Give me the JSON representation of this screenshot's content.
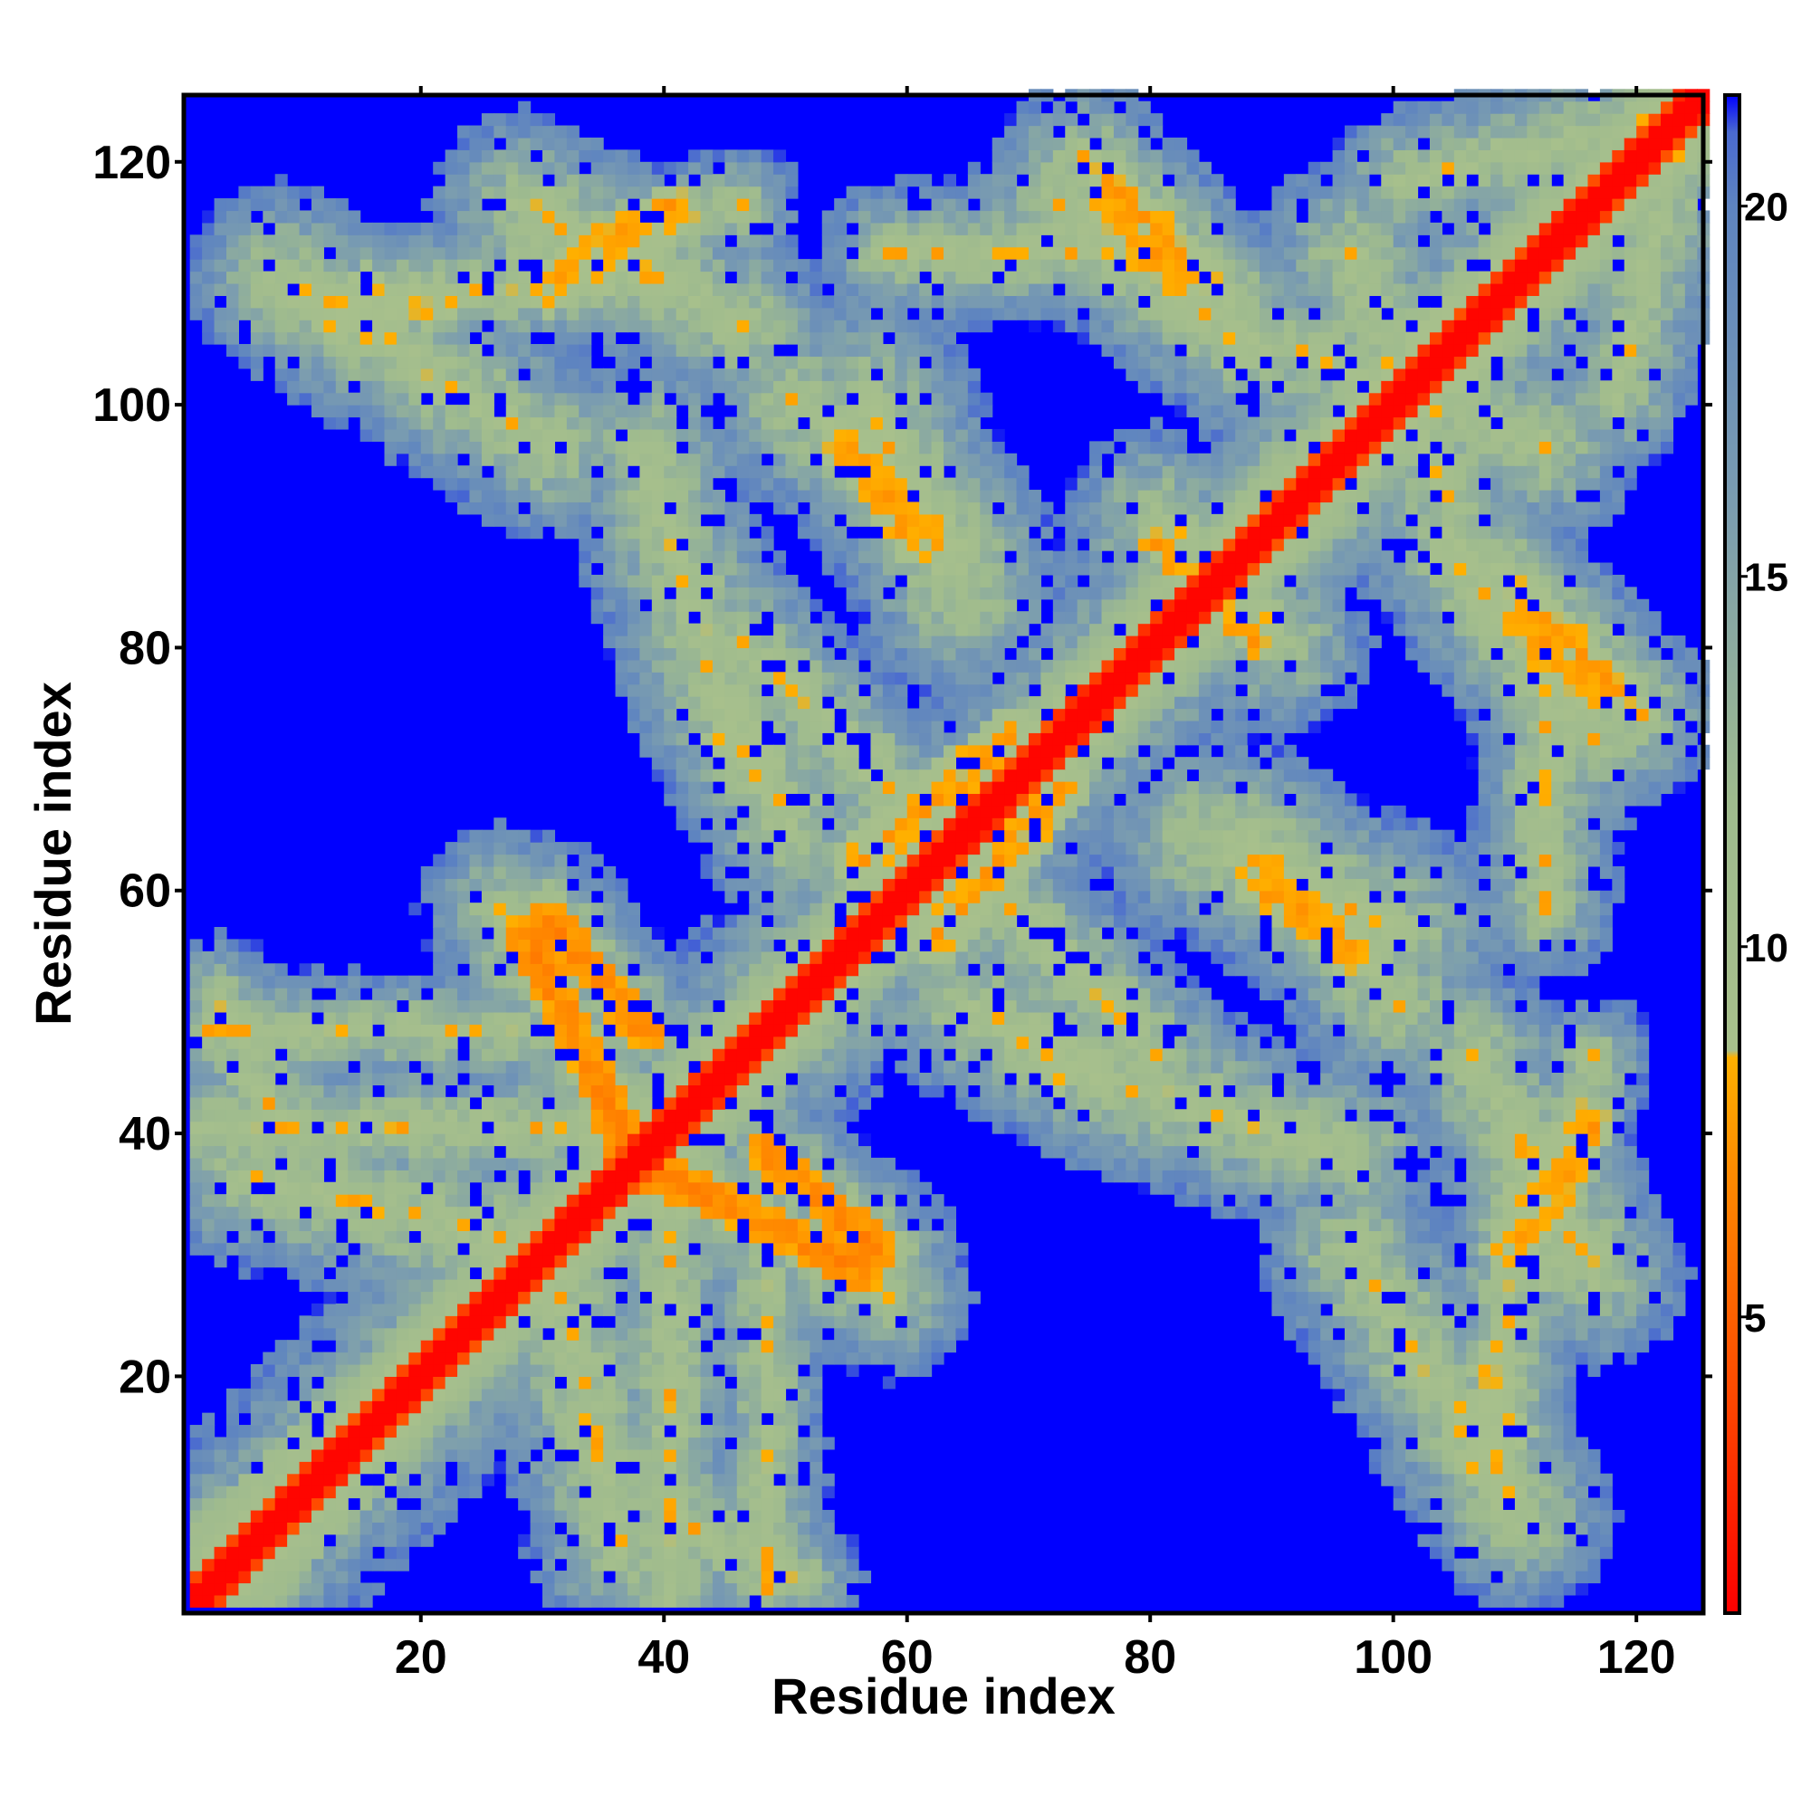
{
  "chart_data": {
    "type": "heatmap",
    "title": "",
    "xlabel": "Residue index",
    "ylabel": "Residue index",
    "n_residues": 125,
    "xlim": [
      1,
      125
    ],
    "ylim": [
      1,
      125
    ],
    "x_ticks": [
      20,
      40,
      60,
      80,
      100,
      120
    ],
    "y_ticks": [
      20,
      40,
      60,
      80,
      100,
      120
    ],
    "colorbar": {
      "range": [
        1,
        21.5
      ],
      "ticks": [
        5,
        10,
        15,
        20
      ],
      "stops": [
        {
          "value": 1.0,
          "color": "#ff0000"
        },
        {
          "value": 4.0,
          "color": "#ff4a00"
        },
        {
          "value": 7.0,
          "color": "#ff8c00"
        },
        {
          "value": 8.5,
          "color": "#ffb000"
        },
        {
          "value": 8.6,
          "color": "#a8c08c"
        },
        {
          "value": 12.0,
          "color": "#9fbb8e"
        },
        {
          "value": 16.0,
          "color": "#7a9cb0"
        },
        {
          "value": 20.0,
          "color": "#5e84c0"
        },
        {
          "value": 21.0,
          "color": "#4a6ad0"
        },
        {
          "value": 21.5,
          "color": "#0000ff"
        }
      ]
    },
    "contact_segments": [
      {
        "x": [
          5,
          30
        ],
        "y": [
          2,
          30
        ],
        "width": 3.0,
        "value": 9
      },
      {
        "x": [
          30,
          38
        ],
        "y": [
          57,
          48
        ],
        "width": 1.6,
        "value": 6
      },
      {
        "x": [
          36,
          56
        ],
        "y": [
          38,
          28
        ],
        "width": 1.6,
        "value": 6
      },
      {
        "x": [
          56,
          68
        ],
        "y": [
          62,
          72
        ],
        "width": 2.5,
        "value": 7
      },
      {
        "x": [
          30,
          40
        ],
        "y": [
          110,
          116
        ],
        "width": 1.6,
        "value": 7
      },
      {
        "x": [
          12,
          22
        ],
        "y": [
          106,
          108
        ],
        "width": 1.2,
        "value": 8
      },
      {
        "x": [
          54,
          60
        ],
        "y": [
          96,
          90
        ],
        "width": 1.5,
        "value": 7
      },
      {
        "x": [
          76,
          84
        ],
        "y": [
          118,
          110
        ],
        "width": 1.5,
        "value": 7
      },
      {
        "x": [
          88,
          96
        ],
        "y": [
          60,
          55
        ],
        "width": 1.5,
        "value": 7
      },
      {
        "x": [
          110,
          116
        ],
        "y": [
          82,
          76
        ],
        "width": 1.5,
        "value": 7
      },
      {
        "x": [
          108,
          114
        ],
        "y": [
          30,
          40
        ],
        "width": 1.3,
        "value": 8
      },
      {
        "x": [
          95,
          106
        ],
        "y": [
          96,
          104
        ],
        "width": 2.0,
        "value": 7
      },
      {
        "x": [
          80,
          86
        ],
        "y": [
          88,
          82
        ],
        "width": 1.3,
        "value": 7
      },
      {
        "x": [
          107,
          110
        ],
        "y": [
          20,
          15
        ],
        "width": 1.0,
        "value": 8
      },
      {
        "x": [
          44,
          48
        ],
        "y": [
          72,
          70
        ],
        "width": 1.0,
        "value": 8
      }
    ],
    "cloud_regions": [
      {
        "x": [
          2,
          125
        ],
        "y": [
          2,
          125
        ],
        "width": 10,
        "kind": "band"
      },
      {
        "x": [
          2,
          40
        ],
        "y": [
          40,
          40
        ],
        "width": 6
      },
      {
        "x": [
          2,
          28
        ],
        "y": [
          48,
          48
        ],
        "width": 5
      },
      {
        "x": [
          8,
          40
        ],
        "y": [
          108,
          110
        ],
        "width": 6
      },
      {
        "x": [
          28,
          46
        ],
        "y": [
          112,
          116
        ],
        "width": 5
      },
      {
        "x": [
          30,
          38
        ],
        "y": [
          58,
          48
        ],
        "width": 6
      },
      {
        "x": [
          34,
          58
        ],
        "y": [
          40,
          26
        ],
        "width": 7
      },
      {
        "x": [
          30,
          36
        ],
        "y": [
          30,
          5
        ],
        "width": 8
      },
      {
        "x": [
          40,
          50
        ],
        "y": [
          8,
          3
        ],
        "width": 6
      },
      {
        "x": [
          46,
          58
        ],
        "y": [
          80,
          68
        ],
        "width": 7
      },
      {
        "x": [
          50,
          64
        ],
        "y": [
          100,
          88
        ],
        "width": 8
      },
      {
        "x": [
          58,
          78
        ],
        "y": [
          112,
          112
        ],
        "width": 6
      },
      {
        "x": [
          74,
          86
        ],
        "y": [
          120,
          108
        ],
        "width": 7
      },
      {
        "x": [
          64,
          76
        ],
        "y": [
          50,
          44
        ],
        "width": 8
      },
      {
        "x": [
          76,
          96
        ],
        "y": [
          44,
          38
        ],
        "width": 8
      },
      {
        "x": [
          84,
          100
        ],
        "y": [
          64,
          56
        ],
        "width": 9
      },
      {
        "x": [
          104,
          116
        ],
        "y": [
          88,
          72
        ],
        "width": 8
      },
      {
        "x": [
          106,
          116
        ],
        "y": [
          46,
          28
        ],
        "width": 8
      },
      {
        "x": [
          96,
          110
        ],
        "y": [
          30,
          8
        ],
        "width": 8
      },
      {
        "x": [
          92,
          112
        ],
        "y": [
          104,
          96
        ],
        "width": 8
      },
      {
        "x": [
          100,
          125
        ],
        "y": [
          118,
          124
        ],
        "width": 6
      },
      {
        "x": [
          80,
          90
        ],
        "y": [
          90,
          80
        ],
        "width": 8
      }
    ]
  }
}
